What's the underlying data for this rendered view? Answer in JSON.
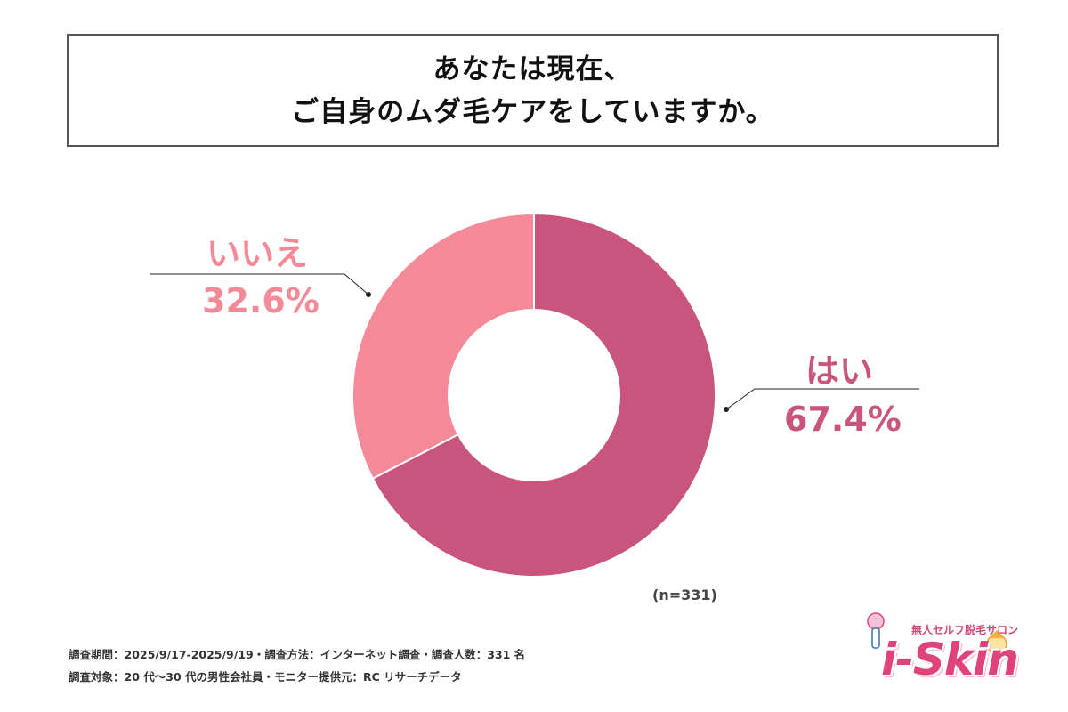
{
  "title": {
    "line1": "あなたは現在、",
    "line2": "ご自身のムダ毛ケアをしていますか。"
  },
  "chart_data": {
    "type": "pie",
    "donut": true,
    "start": "12 o'clock",
    "direction": "clockwise",
    "slices": [
      {
        "label": "はい",
        "value": 67.4,
        "value_text": "67.4%",
        "color": "#c9557f",
        "label_color": "#c9557f"
      },
      {
        "label": "いいえ",
        "value": 32.6,
        "value_text": "32.6%",
        "color": "#f48a98",
        "label_color": "#f48a98"
      }
    ],
    "n_label": "(n=331)"
  },
  "footer": {
    "line1": "調査期間：2025/9/17-2025/9/19・調査方法：インターネット調査・調査人数：331 名",
    "line2": "調査対象：20 代〜30 代の男性会社員・モニター提供元：RC リサーチデータ"
  },
  "logo": {
    "tagline": "無人セルフ脱毛サロン",
    "wordmark": "i-Skin"
  }
}
